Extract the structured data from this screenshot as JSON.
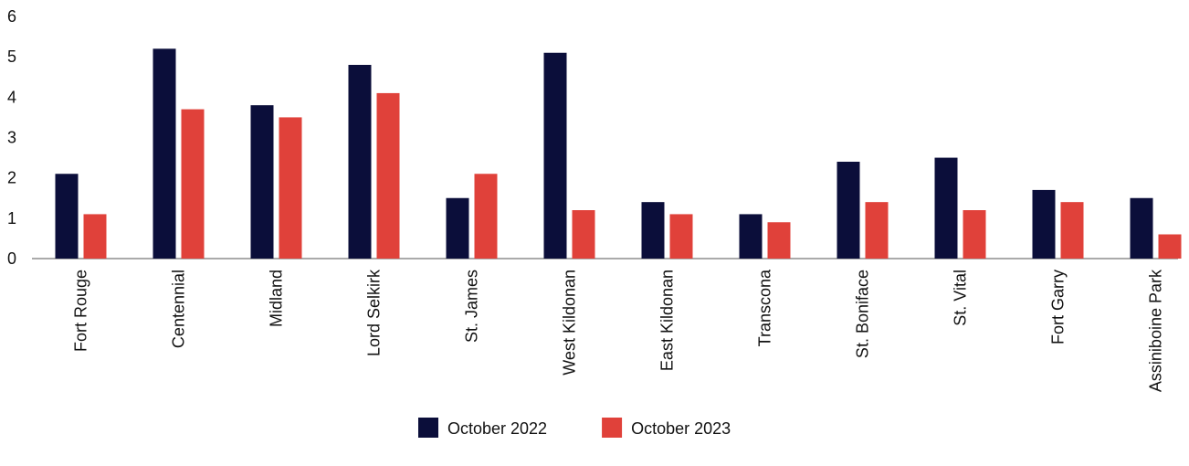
{
  "chart_data": {
    "type": "bar",
    "categories": [
      "Fort Rouge",
      "Centennial",
      "Midland",
      "Lord Selkirk",
      "St. James",
      "West Kildonan",
      "East Kildonan",
      "Transcona",
      "St. Boniface",
      "St. Vital",
      "Fort Garry",
      "Assiniboine Park"
    ],
    "series": [
      {
        "name": "October 2022",
        "color": "#0b0e3a",
        "values": [
          2.1,
          5.2,
          3.8,
          4.8,
          1.5,
          5.1,
          1.4,
          1.1,
          2.4,
          2.5,
          1.7,
          1.5
        ]
      },
      {
        "name": "October 2023",
        "color": "#e0413a",
        "values": [
          1.1,
          3.7,
          3.5,
          4.1,
          2.1,
          1.2,
          1.1,
          0.9,
          1.4,
          1.2,
          1.4,
          0.6
        ]
      }
    ],
    "ylim": [
      0,
      6
    ],
    "yticks": [
      0,
      1,
      2,
      3,
      4,
      5,
      6
    ],
    "grid": false,
    "legend": "bottom"
  }
}
